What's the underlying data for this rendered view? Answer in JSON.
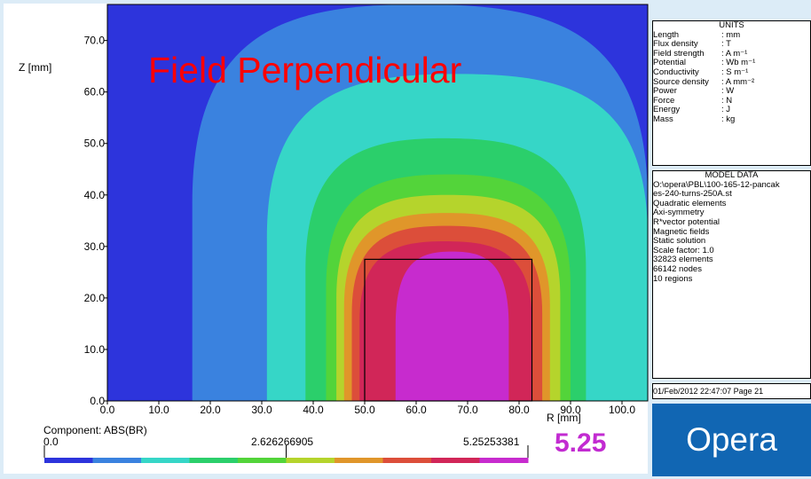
{
  "title": "Field Perpendicular",
  "chart_data": {
    "type": "heatmap",
    "component_label": "Component: ABS(BR)",
    "xlabel": "R [mm]",
    "ylabel": "Z [mm]",
    "xlim": [
      0,
      105
    ],
    "ylim": [
      0,
      77
    ],
    "xticks": [
      "0.0",
      "10.0",
      "20.0",
      "30.0",
      "40.0",
      "50.0",
      "60.0",
      "70.0",
      "80.0",
      "90.0",
      "100.0"
    ],
    "yticks": [
      "0.0",
      "10.0",
      "20.0",
      "30.0",
      "40.0",
      "50.0",
      "60.0",
      "70.0"
    ],
    "xtick_values": [
      0,
      10,
      20,
      30,
      40,
      50,
      60,
      70,
      80,
      90,
      100
    ],
    "ytick_values": [
      0,
      10,
      20,
      30,
      40,
      50,
      60,
      70
    ],
    "scale_min_label": "0.0",
    "scale_mid_label": "2.626266905",
    "scale_max_label": "5.25253381",
    "scale_min": 0.0,
    "scale_max": 5.25253381,
    "max_value_display": "5.25",
    "color_bands": [
      "#2d34dc",
      "#3a82df",
      "#36d6c7",
      "#2bcf6b",
      "#53d43a",
      "#b5d42c",
      "#e0962a",
      "#dc4e3a",
      "#d12658",
      "#c72bce"
    ],
    "contour_levels": [
      {
        "band": 1,
        "r_left": 16.5,
        "r_right": 105,
        "z_top": 77
      },
      {
        "band": 2,
        "r_left": 31,
        "r_right": 105,
        "z_top": 63.5
      },
      {
        "band": 3,
        "r_left": 38.5,
        "r_right": 93,
        "z_top": 51
      },
      {
        "band": 4,
        "r_left": 42.5,
        "r_right": 90,
        "z_top": 44
      },
      {
        "band": 5,
        "r_left": 44.5,
        "r_right": 88,
        "z_top": 40
      },
      {
        "band": 6,
        "r_left": 46,
        "r_right": 86,
        "z_top": 36.5
      },
      {
        "band": 7,
        "r_left": 47.5,
        "r_right": 84.5,
        "z_top": 34
      },
      {
        "band": 8,
        "r_left": 49,
        "r_right": 82.5,
        "z_top": 31
      },
      {
        "band": 9,
        "r_left": 56,
        "r_right": 78,
        "z_top": 29
      }
    ],
    "coil_box": {
      "r_min": 50,
      "r_max": 82.5,
      "z_min": 0,
      "z_max": 27.5
    }
  },
  "units_panel": {
    "title": "UNITS",
    "rows": [
      {
        "label": "Length",
        "value": ": mm"
      },
      {
        "label": "Flux density",
        "value": ": T"
      },
      {
        "label": "Field strength",
        "value": ": A m⁻¹"
      },
      {
        "label": "Potential",
        "value": ": Wb m⁻¹"
      },
      {
        "label": "Conductivity",
        "value": ": S m⁻¹"
      },
      {
        "label": "Source density",
        "value": ": A mm⁻²"
      },
      {
        "label": "Power",
        "value": ": W"
      },
      {
        "label": "Force",
        "value": ": N"
      },
      {
        "label": "Energy",
        "value": ": J"
      },
      {
        "label": "Mass",
        "value": ": kg"
      }
    ]
  },
  "model_panel": {
    "title": "MODEL DATA",
    "lines": [
      "O:\\opera\\PBL\\100-165-12-pancak",
      "es-240-turns-250A.st",
      "Quadratic elements",
      "Axi-symmetry",
      "R*vector potential",
      "Magnetic fields",
      "Static solution",
      "Scale factor: 1.0",
      "32823 elements",
      "66142 nodes",
      "10 regions"
    ]
  },
  "footer_text": "01/Feb/2012 22:47:07 Page 21",
  "logo_text": "Opera"
}
